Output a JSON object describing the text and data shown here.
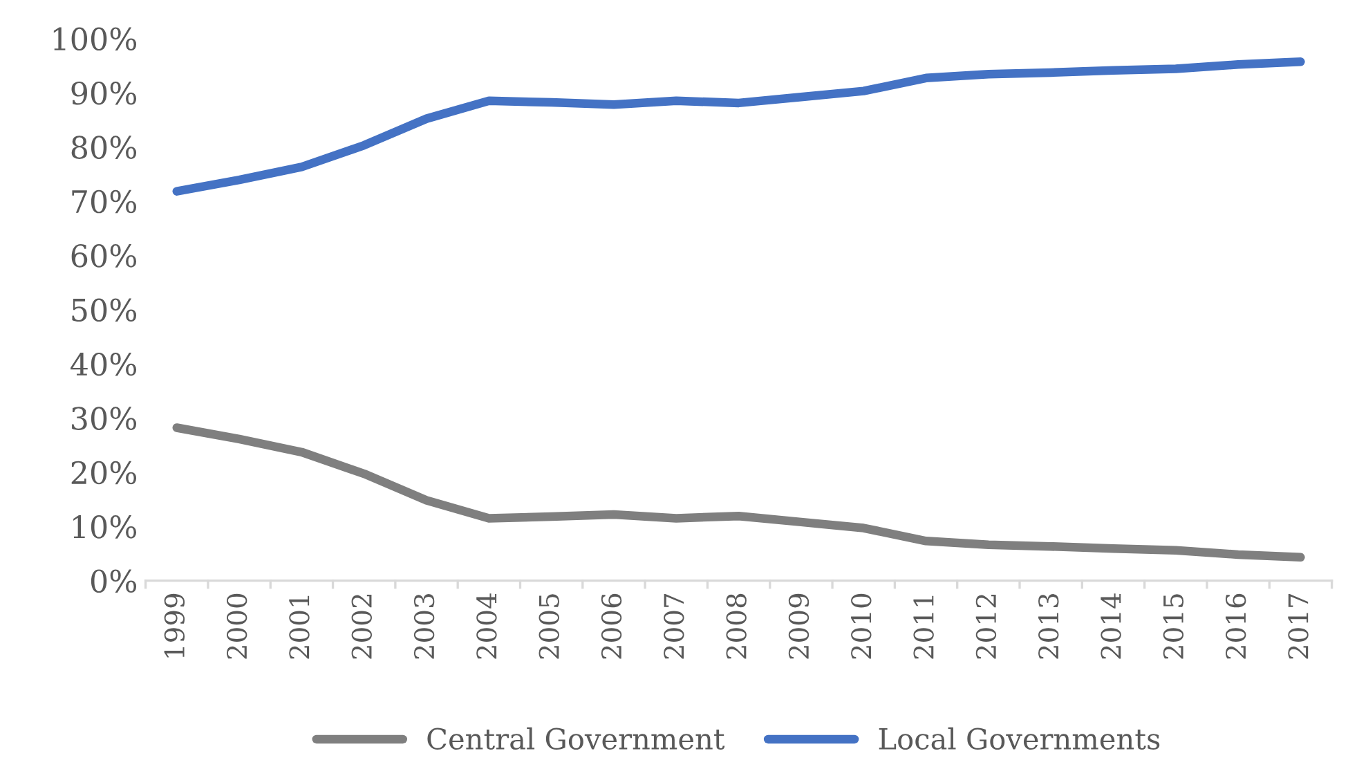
{
  "chart_data": {
    "type": "line",
    "categories": [
      "1999",
      "2000",
      "2001",
      "2002",
      "2003",
      "2004",
      "2005",
      "2006",
      "2007",
      "2008",
      "2009",
      "2010",
      "2011",
      "2012",
      "2013",
      "2014",
      "2015",
      "2016",
      "2017"
    ],
    "series": [
      {
        "name": "Central Government",
        "color": "#7f7f7f",
        "values": [
          28.2,
          26.1,
          23.7,
          19.7,
          14.8,
          11.5,
          11.8,
          12.2,
          11.5,
          11.9,
          10.8,
          9.7,
          7.3,
          6.6,
          6.3,
          5.9,
          5.6,
          4.8,
          4.3
        ]
      },
      {
        "name": "Local Governments",
        "color": "#4472c4",
        "values": [
          71.8,
          73.9,
          76.3,
          80.3,
          85.2,
          88.5,
          88.2,
          87.8,
          88.5,
          88.1,
          89.2,
          90.3,
          92.7,
          93.4,
          93.7,
          94.1,
          94.4,
          95.2,
          95.7
        ]
      }
    ],
    "ylim": [
      0,
      100
    ],
    "yticks": [
      {
        "value": 0,
        "label": "0%"
      },
      {
        "value": 10,
        "label": "10%"
      },
      {
        "value": 20,
        "label": "20%"
      },
      {
        "value": 30,
        "label": "30%"
      },
      {
        "value": 40,
        "label": "40%"
      },
      {
        "value": 50,
        "label": "50%"
      },
      {
        "value": 60,
        "label": "60%"
      },
      {
        "value": 70,
        "label": "70%"
      },
      {
        "value": 80,
        "label": "80%"
      },
      {
        "value": 90,
        "label": "90%"
      },
      {
        "value": 100,
        "label": "100%"
      }
    ],
    "grid": false,
    "legend": "bottom",
    "marker": "none",
    "line_style": "solid"
  }
}
